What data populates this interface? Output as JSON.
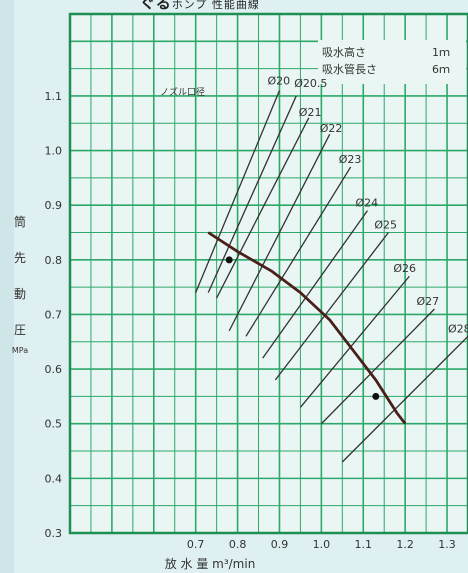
{
  "chart_data": {
    "type": "line",
    "title_bold": "ぐる",
    "title_small": "ホンプ 性能曲線",
    "ylabel_chars": [
      "筒",
      "先",
      "動",
      "圧"
    ],
    "ylabel_unit": "MPa",
    "xlabel": "放 水 量  m³/min",
    "xlim": [
      0.4,
      1.35
    ],
    "ylim": [
      0.3,
      1.25
    ],
    "x_ticks": [
      0.7,
      0.8,
      0.9,
      1.0,
      1.1,
      1.2,
      1.3
    ],
    "x_tick_labels": [
      "0.7",
      "0.8",
      "0.9",
      "1.0",
      "1.1",
      "1.2",
      "1.3"
    ],
    "y_ticks": [
      0.3,
      0.4,
      0.5,
      0.6,
      0.7,
      0.8,
      0.9,
      1.0,
      1.1
    ],
    "y_tick_labels": [
      "0.3",
      "0.4",
      "0.5",
      "0.6",
      "0.7",
      "0.8",
      "0.9",
      "1.0",
      "1.1"
    ],
    "grid": true,
    "conditions": [
      {
        "label": "吸水高さ",
        "value": "1ｍ"
      },
      {
        "label": "吸水管長さ",
        "value": "6ｍ"
      }
    ],
    "nozzle_header": "ノズル口径",
    "nozzle_lines": [
      {
        "name": "Ø20",
        "x1": 0.7,
        "y1": 0.74,
        "x2": 0.9,
        "y2": 1.11
      },
      {
        "name": "Ø20.5",
        "x1": 0.73,
        "y1": 0.74,
        "x2": 0.94,
        "y2": 1.1
      },
      {
        "name": "Ø21",
        "x1": 0.75,
        "y1": 0.73,
        "x2": 0.97,
        "y2": 1.06
      },
      {
        "name": "Ø22",
        "x1": 0.78,
        "y1": 0.67,
        "x2": 1.02,
        "y2": 1.03
      },
      {
        "name": "Ø23",
        "x1": 0.82,
        "y1": 0.66,
        "x2": 1.07,
        "y2": 0.97
      },
      {
        "name": "Ø24",
        "x1": 0.86,
        "y1": 0.62,
        "x2": 1.11,
        "y2": 0.89
      },
      {
        "name": "Ø25",
        "x1": 0.89,
        "y1": 0.58,
        "x2": 1.16,
        "y2": 0.85
      },
      {
        "name": "Ø26",
        "x1": 0.95,
        "y1": 0.53,
        "x2": 1.21,
        "y2": 0.77
      },
      {
        "name": "Ø27",
        "x1": 1.0,
        "y1": 0.5,
        "x2": 1.27,
        "y2": 0.71
      },
      {
        "name": "Ø28",
        "x1": 1.05,
        "y1": 0.43,
        "x2": 1.35,
        "y2": 0.66
      }
    ],
    "curve": {
      "x": [
        0.73,
        0.8,
        0.88,
        0.95,
        1.02,
        1.08,
        1.13,
        1.18,
        1.2
      ],
      "y": [
        0.85,
        0.815,
        0.78,
        0.74,
        0.69,
        0.63,
        0.58,
        0.52,
        0.5
      ]
    },
    "points": [
      {
        "x": 0.78,
        "y": 0.8
      },
      {
        "x": 1.13,
        "y": 0.55
      }
    ]
  },
  "colors": {
    "background": "#dff0f2",
    "plot_bg": "#e9f6f3",
    "grid_minor": "#2ea86a",
    "grid_major": "#1d8f55",
    "border": "#1d8f55",
    "nozzle_line": "#333333",
    "curve": "#4a1f1a"
  }
}
